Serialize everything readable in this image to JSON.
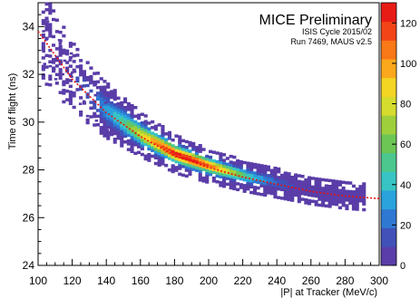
{
  "chart_data": {
    "type": "heatmap",
    "annotation": {
      "title": "MICE Preliminary",
      "line1": "ISIS Cycle 2015/02",
      "line2": "Run 7469, MAUS v2.5"
    },
    "xlabel": "|P| at Tracker (MeV/c)",
    "ylabel": "Time of flight (ns)",
    "xlim": [
      100,
      300
    ],
    "ylim": [
      24,
      35
    ],
    "x_ticks": [
      100,
      120,
      140,
      160,
      180,
      200,
      220,
      240,
      260,
      280,
      300
    ],
    "y_ticks": [
      24,
      26,
      28,
      30,
      32,
      34
    ],
    "colorbar": {
      "range": [
        0,
        130
      ],
      "ticks": [
        0,
        20,
        40,
        60,
        80,
        100,
        120
      ],
      "colors": [
        "#5a3da8",
        "#4151b8",
        "#2f78d2",
        "#2aa2dc",
        "#38c4c4",
        "#4cc78e",
        "#6cc654",
        "#a0cf3c",
        "#d6dc2e",
        "#f3d524",
        "#fba81c",
        "#f97818",
        "#f24417",
        "#e81c17"
      ]
    },
    "fit_curve": {
      "style": "red dotted",
      "points": [
        [
          100,
          33.8
        ],
        [
          120,
          31.8
        ],
        [
          140,
          30.4
        ],
        [
          160,
          29.4
        ],
        [
          180,
          28.6
        ],
        [
          200,
          28.1
        ],
        [
          220,
          27.7
        ],
        [
          240,
          27.4
        ],
        [
          260,
          27.1
        ],
        [
          280,
          26.9
        ],
        [
          300,
          26.8
        ]
      ]
    },
    "density_band": {
      "x_range": [
        102,
        290
      ],
      "peak_x": 185,
      "peak_count": 125
    }
  }
}
